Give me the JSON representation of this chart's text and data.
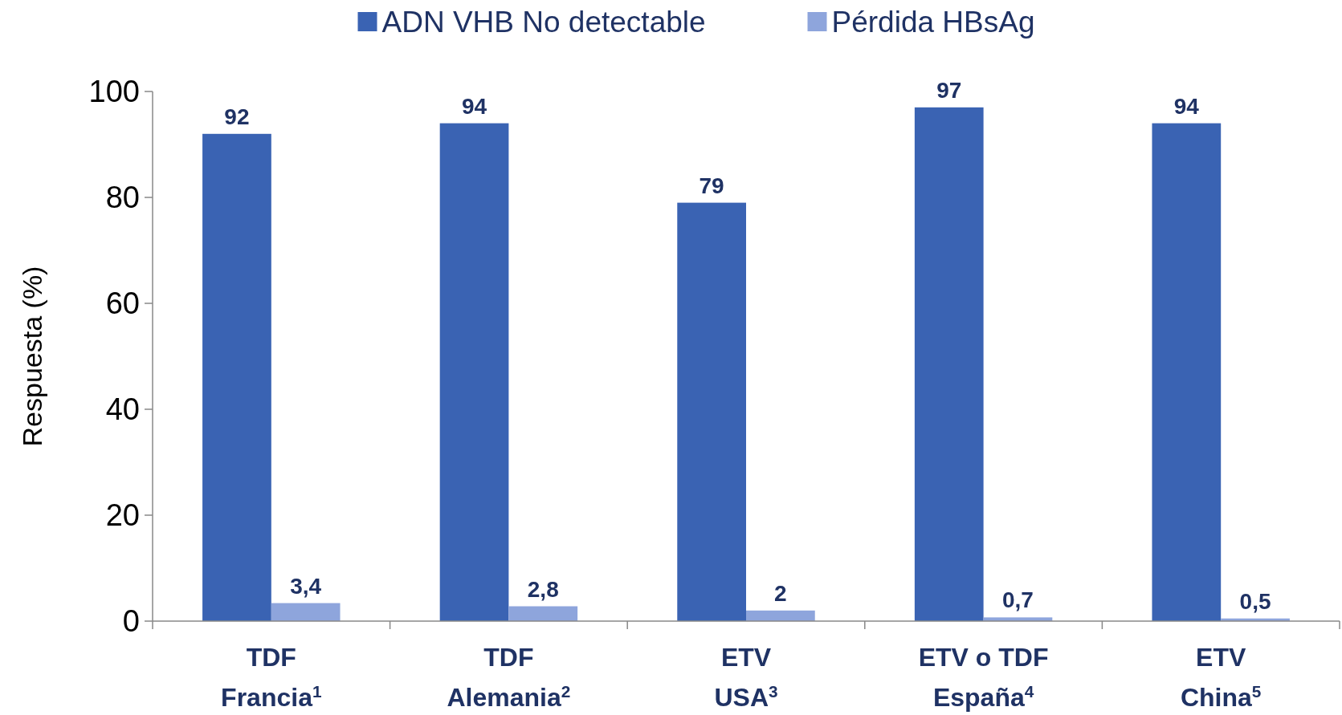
{
  "chart_data": {
    "type": "bar",
    "ylabel": "Respuesta (%)",
    "categories": [
      "TDF\nFrancia$^{1}$",
      "TDF\nAlemania$^{2}$",
      "ETV\nUSA$^{3}$",
      "ETV o TDF\nEspaña$^{4}$",
      "ETV\nChina$^{5}$"
    ],
    "series": [
      {
        "name": "ADN VHB No detectable",
        "color": "#3a63b3",
        "values": [
          92,
          94,
          79,
          97,
          94
        ],
        "value_labels": [
          "92",
          "94",
          "79",
          "97",
          "94"
        ]
      },
      {
        "name": "Pérdida HBsAg",
        "color": "#8ea5dc",
        "values": [
          3.4,
          2.8,
          2,
          0.7,
          0.5
        ],
        "value_labels": [
          "3,4",
          "2,8",
          "2",
          "0,7",
          "0,5"
        ]
      }
    ],
    "ylim": [
      0,
      100
    ],
    "yticks": [
      0,
      20,
      40,
      60,
      80,
      100
    ],
    "grid": false,
    "legend": "top"
  }
}
